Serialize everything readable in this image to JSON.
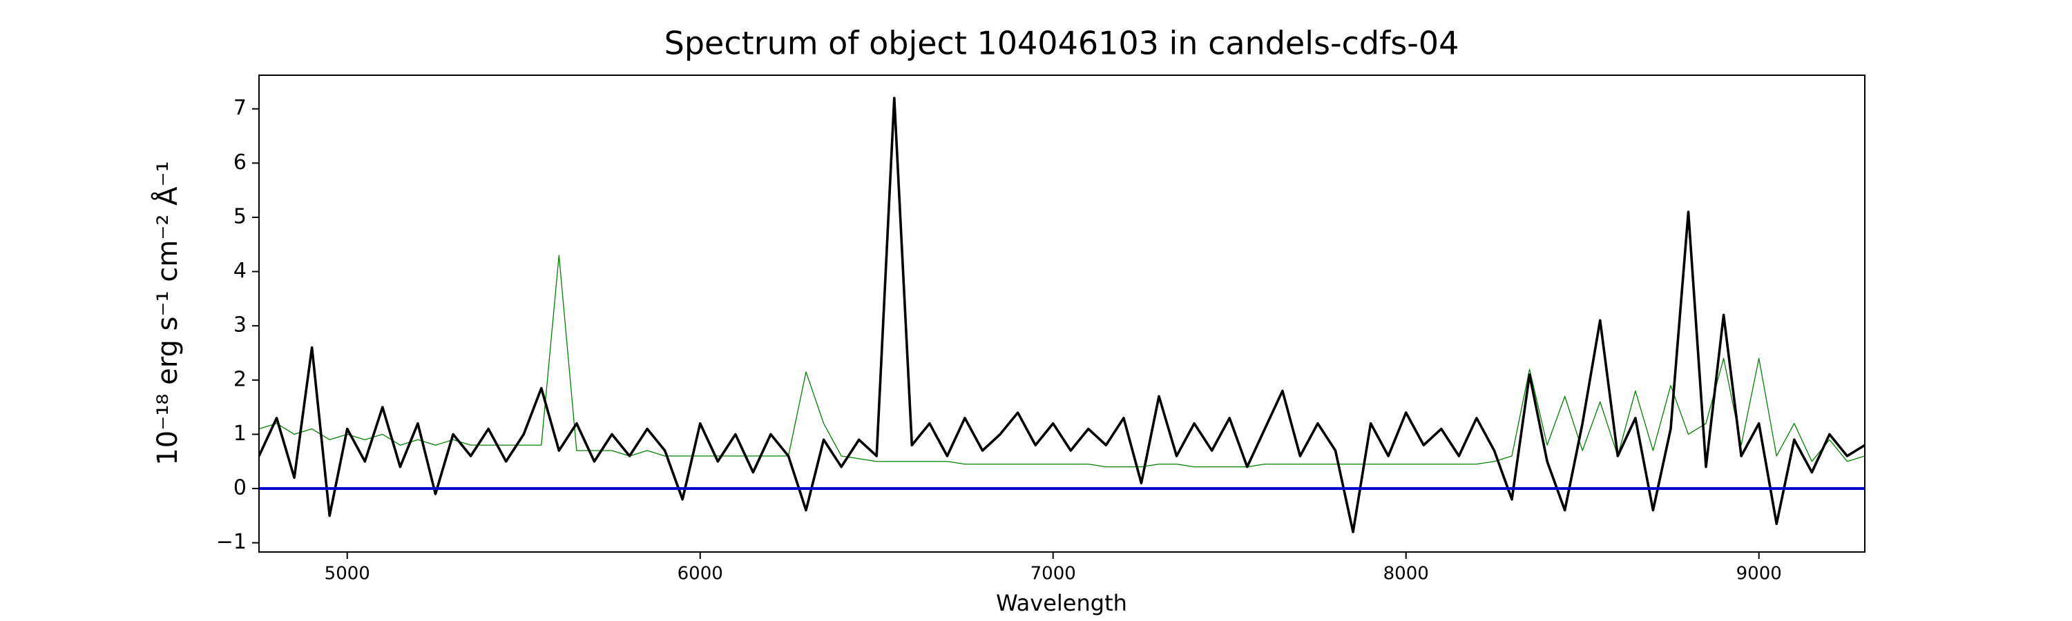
{
  "chart_data": {
    "type": "line",
    "title": "Spectrum of object 104046103 in candels-cdfs-04",
    "x_label": "Wavelength",
    "y_label": "10⁻¹⁸ erg s⁻¹ cm⁻² Å⁻¹",
    "x": [
      4750,
      4800,
      4850,
      4900,
      4950,
      5000,
      5050,
      5100,
      5150,
      5200,
      5250,
      5300,
      5350,
      5400,
      5450,
      5500,
      5550,
      5600,
      5650,
      5700,
      5750,
      5800,
      5850,
      5900,
      5950,
      6000,
      6050,
      6100,
      6150,
      6200,
      6250,
      6300,
      6350,
      6400,
      6450,
      6500,
      6550,
      6600,
      6650,
      6700,
      6750,
      6800,
      6850,
      6900,
      6950,
      7000,
      7050,
      7100,
      7150,
      7200,
      7250,
      7300,
      7350,
      7400,
      7450,
      7500,
      7550,
      7600,
      7650,
      7700,
      7750,
      7800,
      7850,
      7900,
      7950,
      8000,
      8050,
      8100,
      8150,
      8200,
      8250,
      8300,
      8350,
      8400,
      8450,
      8500,
      8550,
      8600,
      8650,
      8700,
      8750,
      8800,
      8850,
      8900,
      8950,
      9000,
      9050,
      9100,
      9150,
      9200,
      9250,
      9300
    ],
    "series": [
      {
        "color": "#008000",
        "values": [
          1.1,
          1.2,
          1.0,
          1.1,
          0.9,
          1.0,
          0.9,
          1.0,
          0.8,
          0.9,
          0.8,
          0.9,
          0.8,
          0.8,
          0.8,
          0.8,
          0.8,
          4.3,
          0.7,
          0.7,
          0.7,
          0.6,
          0.7,
          0.6,
          0.6,
          0.6,
          0.6,
          0.6,
          0.6,
          0.6,
          0.6,
          2.15,
          1.2,
          0.6,
          0.55,
          0.5,
          0.5,
          0.5,
          0.5,
          0.5,
          0.45,
          0.45,
          0.45,
          0.45,
          0.45,
          0.45,
          0.45,
          0.45,
          0.4,
          0.4,
          0.4,
          0.45,
          0.45,
          0.4,
          0.4,
          0.4,
          0.4,
          0.45,
          0.45,
          0.45,
          0.45,
          0.45,
          0.45,
          0.45,
          0.45,
          0.45,
          0.45,
          0.45,
          0.45,
          0.45,
          0.5,
          0.6,
          2.2,
          0.8,
          1.7,
          0.7,
          1.6,
          0.6,
          1.8,
          0.7,
          1.9,
          1.0,
          1.2,
          2.4,
          0.8,
          2.4,
          0.6,
          1.2,
          0.5,
          0.9,
          0.5,
          0.6
        ]
      },
      {
        "color": "#000000",
        "values": [
          0.6,
          1.3,
          0.2,
          2.6,
          -0.5,
          1.1,
          0.5,
          1.5,
          0.4,
          1.2,
          -0.1,
          1.0,
          0.6,
          1.1,
          0.5,
          1.0,
          1.85,
          0.7,
          1.2,
          0.5,
          1.0,
          0.6,
          1.1,
          0.7,
          -0.2,
          1.2,
          0.5,
          1.0,
          0.3,
          1.0,
          0.6,
          -0.4,
          0.9,
          0.4,
          0.9,
          0.6,
          7.2,
          0.8,
          1.2,
          0.6,
          1.3,
          0.7,
          1.0,
          1.4,
          0.8,
          1.2,
          0.7,
          1.1,
          0.8,
          1.3,
          0.1,
          1.7,
          0.6,
          1.2,
          0.7,
          1.3,
          0.4,
          1.1,
          1.8,
          0.6,
          1.2,
          0.7,
          -0.8,
          1.2,
          0.6,
          1.4,
          0.8,
          1.1,
          0.6,
          1.3,
          0.7,
          -0.2,
          2.1,
          0.5,
          -0.4,
          1.2,
          3.1,
          0.6,
          1.3,
          -0.4,
          1.1,
          5.1,
          0.4,
          3.2,
          0.6,
          1.2,
          -0.65,
          0.9,
          0.3,
          1.0,
          0.6,
          0.8
        ]
      }
    ],
    "hlines": [
      {
        "value": 0,
        "color": "#0000cc"
      }
    ],
    "xlim": [
      4750,
      9300
    ],
    "ylim": [
      -1.17,
      7.62
    ],
    "xticks": [
      5000,
      6000,
      7000,
      8000,
      9000
    ],
    "yticks": [
      {
        "value": -1,
        "label": "−1"
      },
      0,
      1,
      2,
      3,
      4,
      5,
      6,
      7
    ]
  }
}
